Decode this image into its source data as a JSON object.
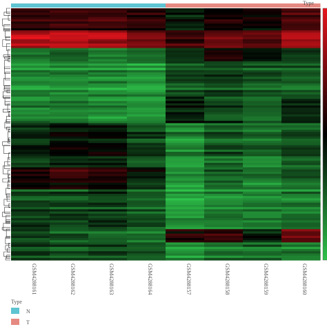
{
  "chart_data": {
    "type": "heatmap",
    "title": "",
    "columns": [
      "GSM4288161",
      "GSM4288162",
      "GSM4288163",
      "GSM4288164",
      "GSM4288157",
      "GSM4288158",
      "GSM4288159",
      "GSM4288160"
    ],
    "column_groups": [
      "N",
      "N",
      "N",
      "N",
      "T",
      "T",
      "T",
      "T"
    ],
    "annotation": {
      "title": "Type",
      "legend": [
        {
          "label": "N",
          "color": "#5fc4d2"
        },
        {
          "label": "T",
          "color": "#e58a82"
        }
      ],
      "legend_placement": "bottom-left"
    },
    "color_scale": {
      "title": "Type",
      "low": "#2ec24a",
      "mid": "#000000",
      "high": "#e8151d",
      "placement": "right"
    },
    "row_dendrogram": true,
    "grid": false,
    "row_blocks": [
      {
        "rows": 10,
        "values": [
          0.25,
          0.3,
          0.28,
          0.2,
          -0.15,
          0.1,
          0.05,
          0.35
        ]
      },
      {
        "rows": 8,
        "values": [
          0.8,
          0.85,
          0.78,
          0.6,
          0.3,
          0.5,
          0.45,
          0.75
        ]
      },
      {
        "rows": 6,
        "values": [
          -0.55,
          -0.5,
          -0.6,
          -0.55,
          -0.2,
          0.05,
          -0.1,
          -0.25
        ]
      },
      {
        "rows": 16,
        "values": [
          -0.75,
          -0.7,
          -0.72,
          -0.78,
          -0.4,
          -0.35,
          -0.45,
          -0.5
        ]
      },
      {
        "rows": 12,
        "values": [
          -0.6,
          -0.55,
          -0.65,
          -0.7,
          -0.05,
          -0.3,
          -0.4,
          -0.15
        ]
      },
      {
        "rows": 20,
        "values": [
          -0.2,
          -0.05,
          -0.1,
          -0.35,
          -0.7,
          -0.45,
          -0.55,
          -0.4
        ]
      },
      {
        "rows": 10,
        "values": [
          0.05,
          0.15,
          0.1,
          -0.15,
          -0.75,
          -0.5,
          -0.6,
          -0.45
        ]
      },
      {
        "rows": 18,
        "values": [
          -0.4,
          -0.45,
          -0.35,
          -0.5,
          -0.85,
          -0.7,
          -0.75,
          -0.65
        ]
      },
      {
        "rows": 6,
        "values": [
          -0.45,
          -0.5,
          -0.55,
          -0.6,
          0.1,
          0.15,
          -0.2,
          0.4
        ]
      },
      {
        "rows": 8,
        "values": [
          -0.3,
          -0.35,
          -0.3,
          -0.45,
          -0.7,
          -0.55,
          -0.5,
          -0.6
        ]
      }
    ]
  }
}
